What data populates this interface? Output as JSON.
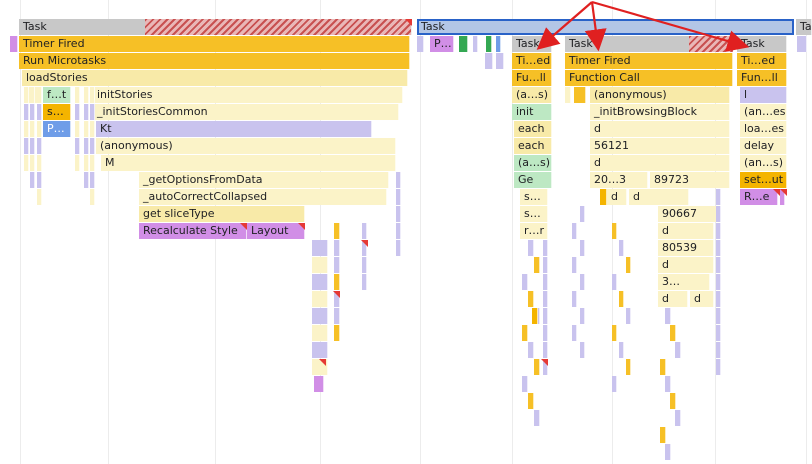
{
  "colors": {
    "task": "#c8c8c8",
    "yellow": "#f6c026",
    "lightYellow": "#f8eaa8",
    "paleYellow": "#fbf3c8",
    "purple": "#c9c3ee",
    "magenta": "#d18ee6",
    "green": "#bde8c3",
    "blue": "#6f9de8",
    "orange": "#f4b400",
    "arrow": "#e02020"
  },
  "labels": {
    "task1": "Task",
    "task2": "Task",
    "task3": "Tas",
    "timer_fired": "Timer Fired",
    "run_microtasks": "Run Microtasks",
    "load_stories": "loadStories",
    "f_t": "f…t",
    "init_stories": "initStories",
    "s_dots": "s…",
    "init_stories_common": "_initStoriesCommon",
    "p_dots": "P…",
    "kt": "Kt",
    "anonymous1": "(anonymous)",
    "m": "M",
    "get_options": "_getOptionsFromData",
    "auto_correct": "_autoCorrectCollapsed",
    "get_slice_type": "get sliceType",
    "recalc_style": "Recalculate Style",
    "layout": "Layout",
    "p_small": "P…",
    "b_task": "Task",
    "b_ti_ed": "Ti…ed",
    "b_fu_ll": "Fu…ll",
    "b_as": "(a…s)",
    "b_init": "init",
    "b_each1": "each",
    "b_each2": "each",
    "b_as2": "(a…s)",
    "b_ge": "Ge",
    "b_s1": "s…",
    "b_s2": "s…",
    "b_rr": "r…r",
    "c_task": "Task",
    "c_timer": "Timer Fired",
    "c_func": "Function Call",
    "c_anon": "(anonymous)",
    "c_init_browsing": "_initBrowsingBlock",
    "c_d1": "d",
    "c_56121": "56121",
    "c_d2": "d",
    "c_203": "20…3",
    "c_89723": "89723",
    "c_d3": "d",
    "c_d4": "d",
    "c_90667": "90667",
    "c_d5": "d",
    "c_80539": "80539",
    "c_d6": "d",
    "c_3": "3…",
    "c_d7": "d",
    "c_d8": "d",
    "d_task": "Task",
    "d_ti_ed": "Ti…ed",
    "d_fun_ll": "Fun…ll",
    "d_l": "l",
    "d_anes": "(an…es)",
    "d_loaes": "loa…es",
    "d_delay": "delay",
    "d_ans": "(an…s)",
    "d_setut": "set…ut",
    "d_re": "R…e"
  }
}
